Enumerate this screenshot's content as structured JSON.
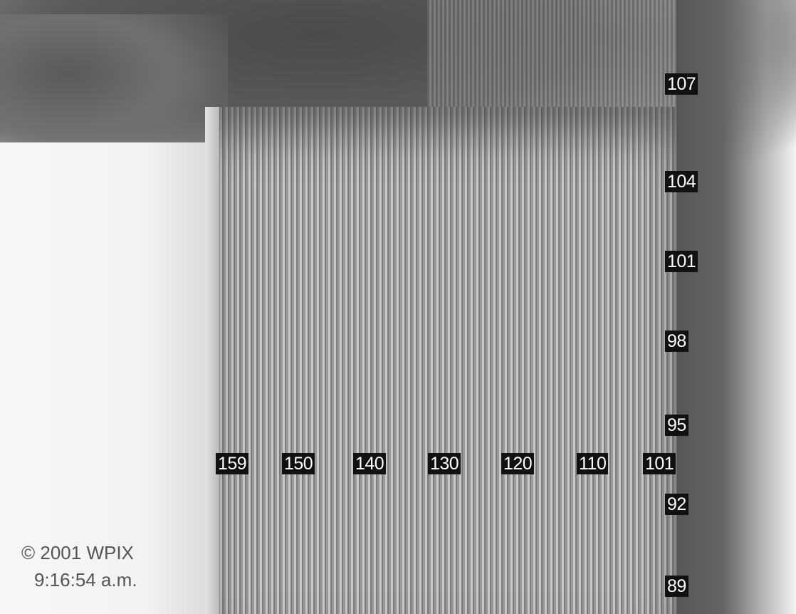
{
  "floor_labels": {
    "f107": "107",
    "f104": "104",
    "f101": "101",
    "f98": "98",
    "f95": "95",
    "f92": "92",
    "f89": "89"
  },
  "column_labels": {
    "c159": "159",
    "c150": "150",
    "c140": "140",
    "c130": "130",
    "c120": "120",
    "c110": "110",
    "c101": "101"
  },
  "caption": {
    "copyright": "© 2001 WPIX",
    "time": "9:16:54 a.m."
  },
  "colors": {
    "label_bg": "#111111",
    "label_text": "#ffffff",
    "caption_text": "#555555"
  }
}
